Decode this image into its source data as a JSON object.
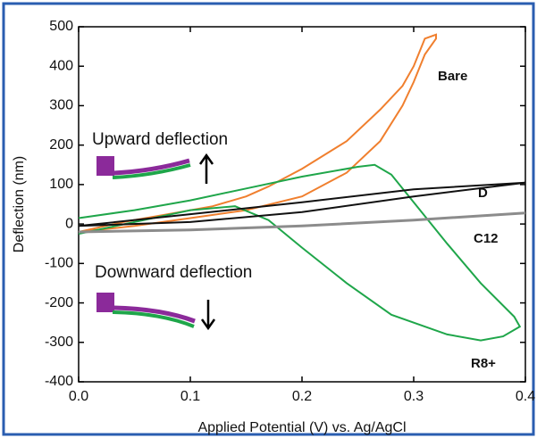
{
  "chart_data": {
    "type": "line",
    "xlabel": "Applied Potential (V) vs. Ag/AgCl",
    "ylabel": "Deflection (nm)",
    "xlim": [
      0,
      0.4
    ],
    "ylim": [
      -400,
      500
    ],
    "xticks": [
      {
        "value": 0,
        "label": "0.0"
      },
      {
        "value": 0.1,
        "label": "0.1"
      },
      {
        "value": 0.2,
        "label": "0.2"
      },
      {
        "value": 0.3,
        "label": "0.3"
      },
      {
        "value": 0.4,
        "label": "0.4"
      }
    ],
    "yticks": [
      -400,
      -300,
      -200,
      -100,
      0,
      100,
      200,
      300,
      400,
      500
    ],
    "annotations": [
      "Upward deflection",
      "Downward deflection"
    ],
    "series": [
      {
        "name": "Bare",
        "color": "#f07f2e",
        "x": [
          0,
          0.05,
          0.1,
          0.15,
          0.2,
          0.24,
          0.27,
          0.29,
          0.3,
          0.31,
          0.32,
          0.32,
          0.31,
          0.3,
          0.29,
          0.27,
          0.24,
          0.2,
          0.17,
          0.15,
          0.12,
          0.08,
          0.04,
          0
        ],
        "values": [
          -20,
          -5,
          15,
          35,
          70,
          130,
          210,
          300,
          360,
          430,
          470,
          480,
          470,
          400,
          350,
          290,
          210,
          140,
          95,
          70,
          45,
          25,
          5,
          -20
        ]
      },
      {
        "name": "R8+",
        "color": "#1fa64a",
        "x": [
          0,
          0.05,
          0.1,
          0.15,
          0.2,
          0.25,
          0.265,
          0.28,
          0.3,
          0.33,
          0.36,
          0.39,
          0.395,
          0.38,
          0.36,
          0.33,
          0.28,
          0.24,
          0.2,
          0.17,
          0.14,
          0.1,
          0.05,
          0
        ],
        "values": [
          15,
          35,
          60,
          90,
          120,
          145,
          150,
          125,
          55,
          -50,
          -150,
          -235,
          -260,
          -285,
          -295,
          -280,
          -230,
          -150,
          -60,
          10,
          45,
          35,
          5,
          -25
        ]
      },
      {
        "name": "D",
        "color": "#111111",
        "x": [
          0,
          0.1,
          0.2,
          0.3,
          0.4,
          0.3,
          0.2,
          0.1,
          0
        ],
        "values": [
          -5,
          25,
          55,
          88,
          105,
          70,
          30,
          5,
          -5
        ]
      },
      {
        "name": "C12",
        "color": "#8c8c8c",
        "x": [
          0,
          0.1,
          0.2,
          0.3,
          0.4
        ],
        "values": [
          -20,
          -15,
          -5,
          10,
          28
        ]
      }
    ]
  }
}
